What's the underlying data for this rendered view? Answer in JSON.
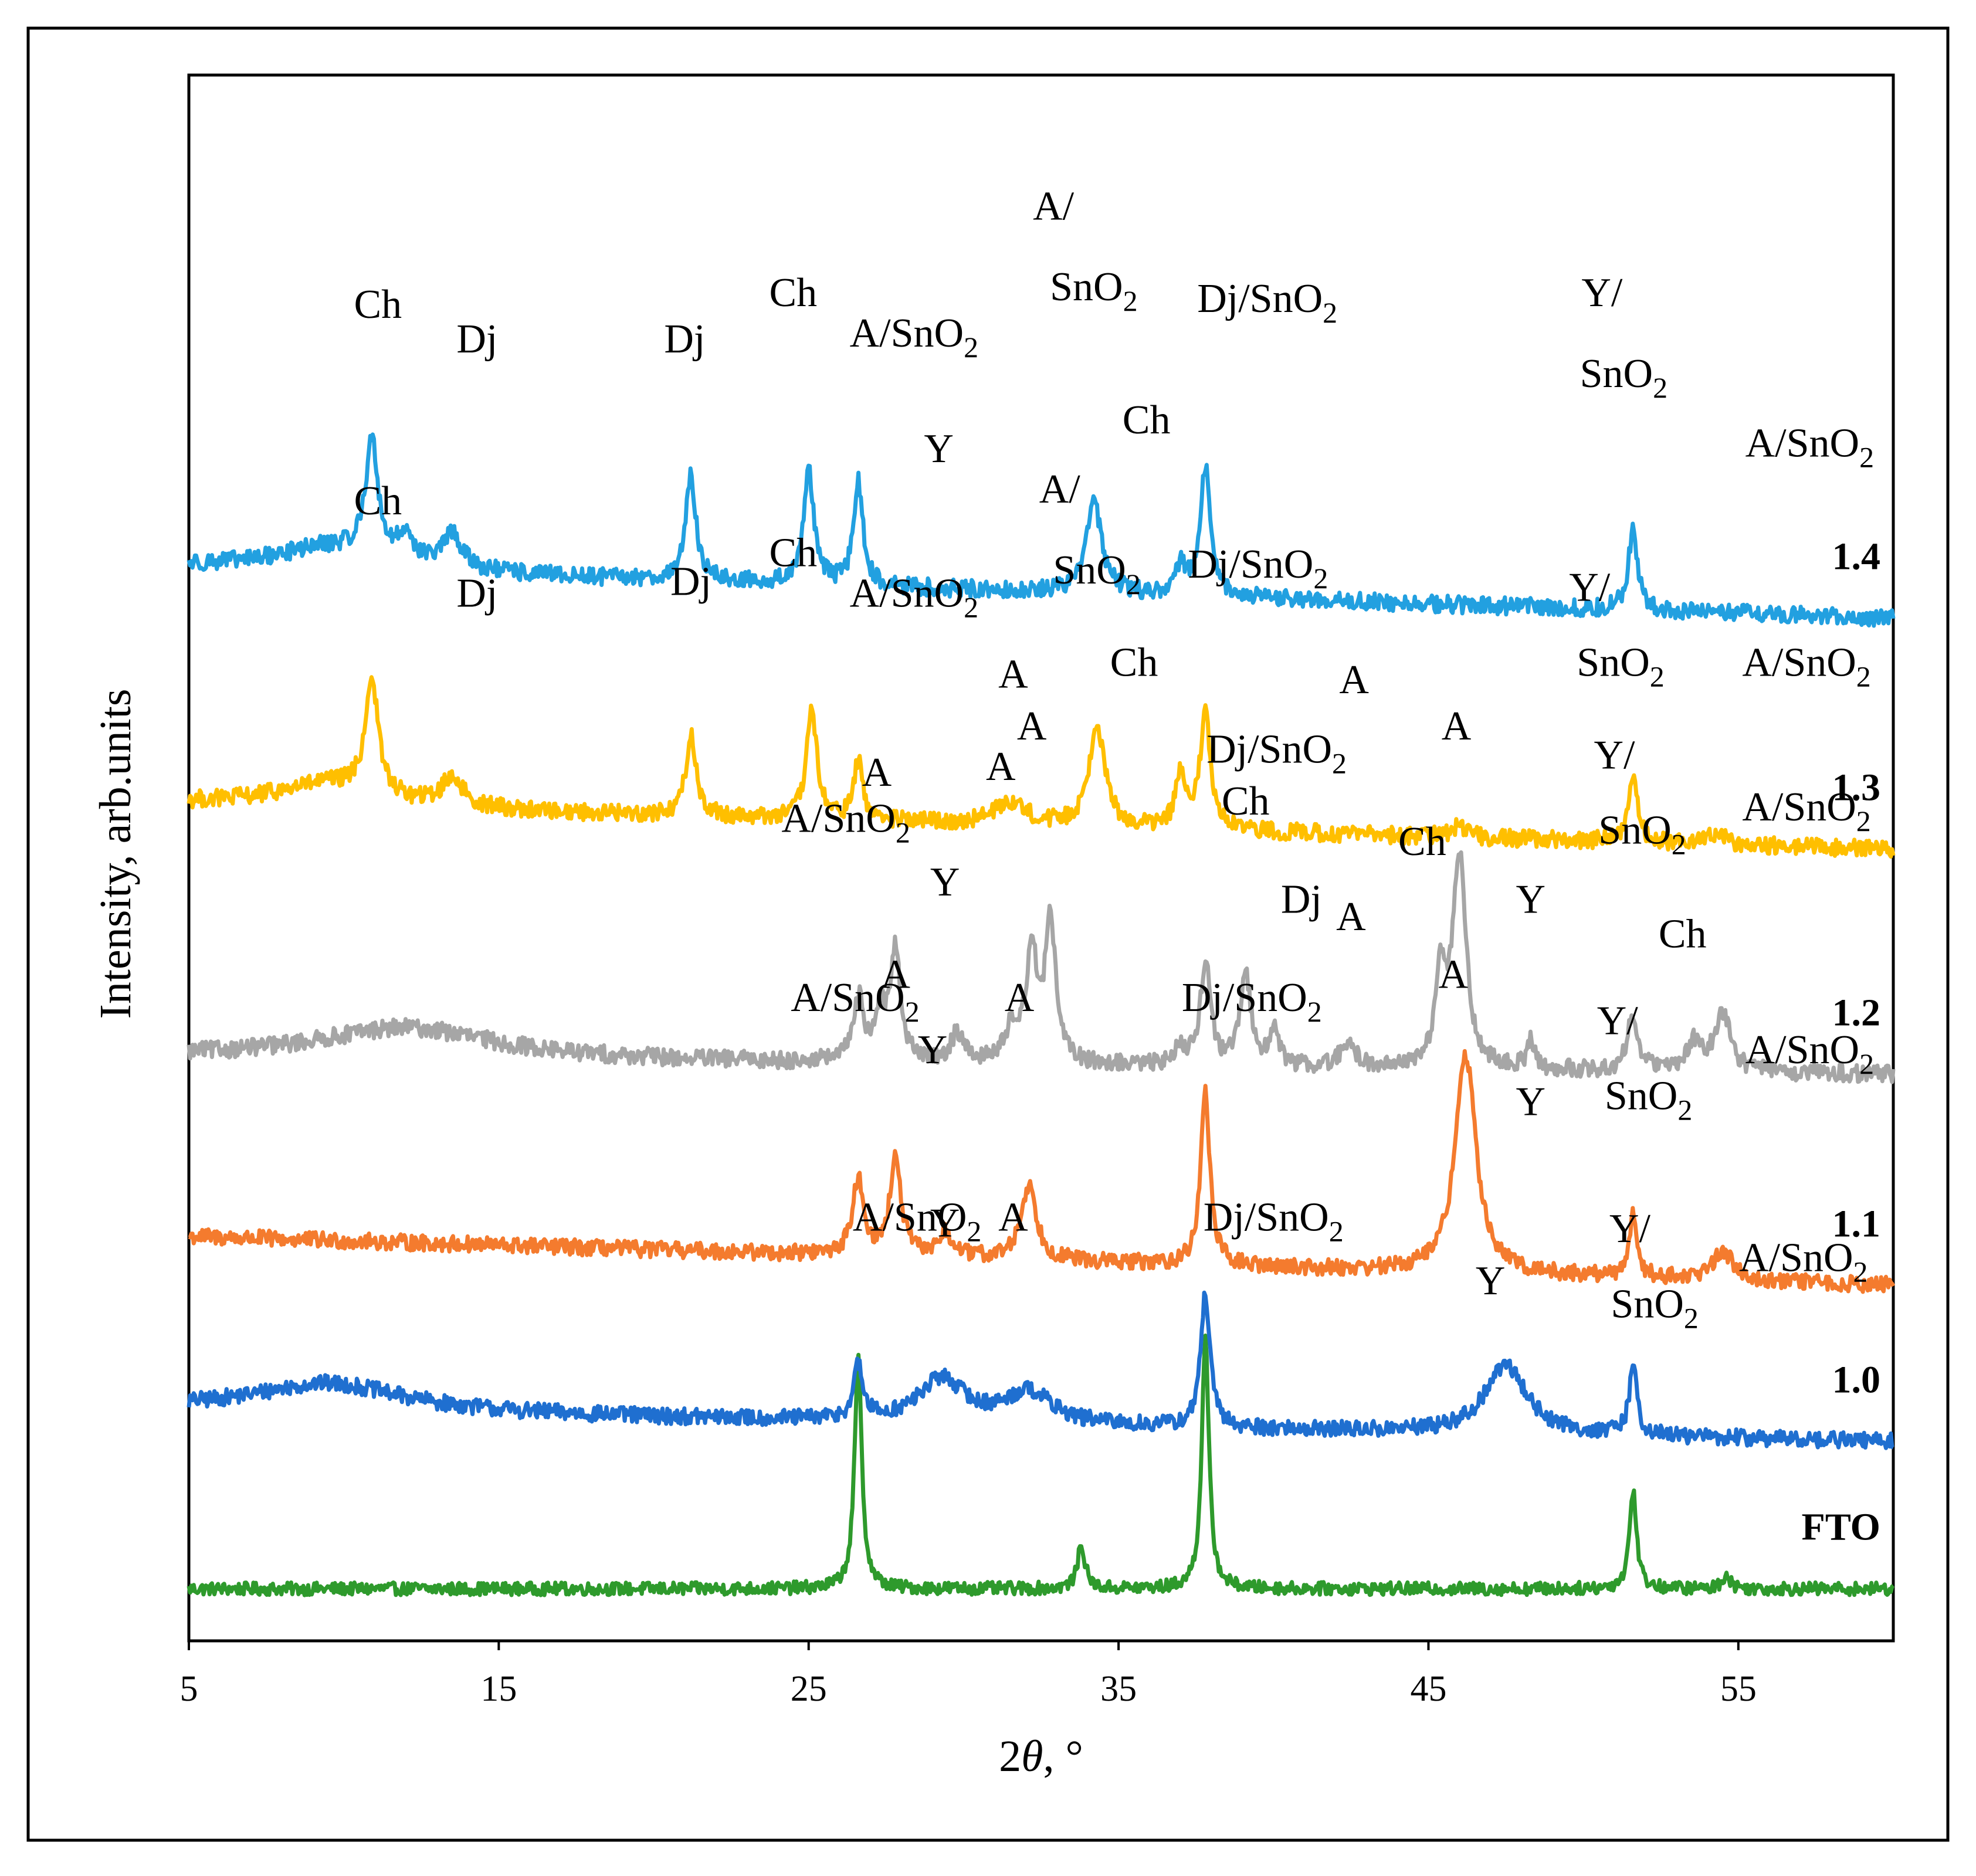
{
  "chart_data": {
    "type": "line",
    "title": "",
    "xlabel_prefix": "2",
    "xlabel_var": "θ",
    "xlabel_suffix": ", °",
    "ylabel": "Intensity, arb.units",
    "xlim": [
      5,
      60
    ],
    "xticks": [
      5,
      15,
      25,
      35,
      45,
      55
    ],
    "yticks_shown": false,
    "grid": false,
    "legend": "none; series labelled at right end of each trace",
    "series": [
      {
        "name": "FTO",
        "color": "#2e9a2c",
        "baseline": 0.3,
        "slope": 0.0,
        "noise": 0.11,
        "peaks": [
          {
            "x": 26.6,
            "h": 4.0,
            "w": 0.14
          },
          {
            "x": 33.8,
            "h": 0.75,
            "w": 0.15
          },
          {
            "x": 37.8,
            "h": 4.3,
            "w": 0.14
          },
          {
            "x": 51.6,
            "h": 1.7,
            "w": 0.14
          },
          {
            "x": 54.6,
            "h": 0.25,
            "w": 0.15
          }
        ],
        "annotations": []
      },
      {
        "name": "1.0",
        "color": "#1f6fd0",
        "baseline": 3.4,
        "slope": -0.55,
        "noise": 0.14,
        "peaks": [
          {
            "x": 9.5,
            "h": 0.5,
            "w": 3.0
          },
          {
            "x": 26.6,
            "h": 0.9,
            "w": 0.18
          },
          {
            "x": 29.3,
            "h": 0.75,
            "w": 0.9
          },
          {
            "x": 32.1,
            "h": 0.55,
            "w": 0.9
          },
          {
            "x": 37.8,
            "h": 2.3,
            "w": 0.18
          },
          {
            "x": 47.5,
            "h": 1.2,
            "w": 0.8
          },
          {
            "x": 51.6,
            "h": 1.2,
            "w": 0.15
          }
        ],
        "annotations": [
          {
            "text": "A/SnO",
            "sub": "2",
            "x": 28.5,
            "y": 6.5
          },
          {
            "text": "Y",
            "x": 29.4,
            "y": 6.4
          },
          {
            "text": "A",
            "x": 31.6,
            "y": 6.5
          },
          {
            "text": "Dj/SnO",
            "sub": "2",
            "x": 40.0,
            "y": 6.5
          },
          {
            "text": "Y",
            "x": 47.0,
            "y": 5.4
          },
          {
            "text": "Y/",
            "x": 51.5,
            "y": 6.3
          },
          {
            "text": "SnO",
            "sub": "2",
            "x": 52.3,
            "y": 5.0
          },
          {
            "text": "A/SnO",
            "sub": "2",
            "x": 57.1,
            "y": 5.8
          }
        ]
      },
      {
        "name": "1.1",
        "color": "#f47b2e",
        "baseline": 6.4,
        "slope": -0.85,
        "noise": 0.14,
        "peaks": [
          {
            "x": 26.6,
            "h": 1.3,
            "w": 0.22
          },
          {
            "x": 27.8,
            "h": 1.65,
            "w": 0.22
          },
          {
            "x": 29.4,
            "h": 0.4,
            "w": 0.3
          },
          {
            "x": 32.1,
            "h": 1.3,
            "w": 0.3
          },
          {
            "x": 37.8,
            "h": 3.0,
            "w": 0.18
          },
          {
            "x": 46.2,
            "h": 3.8,
            "w": 0.4
          },
          {
            "x": 51.6,
            "h": 1.1,
            "w": 0.15
          },
          {
            "x": 54.5,
            "h": 0.5,
            "w": 0.4
          }
        ],
        "annotations": [
          {
            "text": "A/SnO",
            "sub": "2",
            "x": 26.5,
            "y": 10.3
          },
          {
            "text": "A",
            "x": 27.8,
            "y": 10.7
          },
          {
            "text": "Y",
            "x": 29.0,
            "y": 9.4
          },
          {
            "text": "A",
            "x": 31.8,
            "y": 10.3
          },
          {
            "text": "Dj/SnO",
            "sub": "2",
            "x": 39.3,
            "y": 10.3
          },
          {
            "text": "A",
            "x": 45.8,
            "y": 10.7
          },
          {
            "text": "Y",
            "x": 48.3,
            "y": 8.5
          },
          {
            "text": "Y/",
            "x": 51.1,
            "y": 9.9
          },
          {
            "text": "SnO",
            "sub": "2",
            "x": 52.1,
            "y": 8.6
          },
          {
            "text": "A/SnO",
            "sub": "2",
            "x": 57.3,
            "y": 9.4
          }
        ]
      },
      {
        "name": "1.2",
        "color": "#a6a6a6",
        "baseline": 9.5,
        "slope": -0.3,
        "noise": 0.15,
        "peaks": [
          {
            "x": 12.0,
            "h": 0.55,
            "w": 3.5
          },
          {
            "x": 26.6,
            "h": 1.1,
            "w": 0.2
          },
          {
            "x": 27.3,
            "h": 0.8,
            "w": 0.2
          },
          {
            "x": 27.8,
            "h": 1.9,
            "w": 0.2
          },
          {
            "x": 29.8,
            "h": 0.5,
            "w": 0.25
          },
          {
            "x": 31.6,
            "h": 0.6,
            "w": 0.3
          },
          {
            "x": 32.2,
            "h": 1.9,
            "w": 0.2
          },
          {
            "x": 32.8,
            "h": 2.5,
            "w": 0.2
          },
          {
            "x": 37.0,
            "h": 0.3,
            "w": 0.2
          },
          {
            "x": 37.8,
            "h": 1.8,
            "w": 0.2
          },
          {
            "x": 39.1,
            "h": 1.6,
            "w": 0.2
          },
          {
            "x": 40.0,
            "h": 0.6,
            "w": 0.2
          },
          {
            "x": 42.4,
            "h": 0.4,
            "w": 0.3
          },
          {
            "x": 45.4,
            "h": 1.6,
            "w": 0.2
          },
          {
            "x": 46.0,
            "h": 3.7,
            "w": 0.25
          },
          {
            "x": 48.3,
            "h": 0.5,
            "w": 0.15
          },
          {
            "x": 51.6,
            "h": 1.0,
            "w": 0.2
          },
          {
            "x": 53.6,
            "h": 0.5,
            "w": 0.3
          },
          {
            "x": 54.5,
            "h": 1.0,
            "w": 0.3
          }
        ],
        "annotations": [
          {
            "text": "A/SnO",
            "sub": "2",
            "x": 26.2,
            "y": 13.4
          },
          {
            "text": "A",
            "x": 27.2,
            "y": 14.2
          },
          {
            "text": "Y",
            "x": 29.4,
            "y": 12.3
          },
          {
            "text": "A",
            "x": 31.2,
            "y": 14.3
          },
          {
            "text": "A",
            "x": 32.2,
            "y": 15.0
          },
          {
            "text": "Dj/SnO",
            "sub": "2",
            "x": 40.1,
            "y": 14.6
          },
          {
            "text": "Ch",
            "x": 39.1,
            "y": 13.7
          },
          {
            "text": "Dj",
            "x": 40.9,
            "y": 12.0
          },
          {
            "text": "A",
            "x": 42.5,
            "y": 11.7
          },
          {
            "text": "Ch",
            "x": 44.8,
            "y": 13.0
          },
          {
            "text": "A",
            "x": 45.9,
            "y": 15.0
          },
          {
            "text": "Y",
            "x": 48.3,
            "y": 12.0
          },
          {
            "text": "Y/",
            "x": 51.0,
            "y": 14.5
          },
          {
            "text": "SnO",
            "sub": "2",
            "x": 51.9,
            "y": 13.2
          },
          {
            "text": "A/SnO",
            "sub": "2",
            "x": 57.2,
            "y": 13.6
          },
          {
            "text": "Ch",
            "x": 53.2,
            "y": 11.4
          }
        ]
      },
      {
        "name": "1.3",
        "color": "#ffbf00",
        "baseline": 13.9,
        "slope": -0.8,
        "noise": 0.15,
        "peaks": [
          {
            "x": 9.5,
            "h": 0.4,
            "w": 2.0
          },
          {
            "x": 10.9,
            "h": 2.0,
            "w": 0.25
          },
          {
            "x": 13.5,
            "h": 0.5,
            "w": 0.4
          },
          {
            "x": 21.2,
            "h": 1.4,
            "w": 0.2
          },
          {
            "x": 25.1,
            "h": 1.9,
            "w": 0.2
          },
          {
            "x": 26.6,
            "h": 1.0,
            "w": 0.18
          },
          {
            "x": 31.5,
            "h": 0.4,
            "w": 0.6
          },
          {
            "x": 34.3,
            "h": 1.8,
            "w": 0.3
          },
          {
            "x": 37.0,
            "h": 0.9,
            "w": 0.2
          },
          {
            "x": 37.8,
            "h": 2.0,
            "w": 0.2
          },
          {
            "x": 46.0,
            "h": 0.2,
            "w": 0.3
          },
          {
            "x": 51.6,
            "h": 1.1,
            "w": 0.18
          },
          {
            "x": 54.3,
            "h": 0.2,
            "w": 0.3
          }
        ],
        "annotations": [
          {
            "text": "Ch",
            "x": 11.1,
            "y": 18.9
          },
          {
            "text": "Dj",
            "x": 14.3,
            "y": 17.3
          },
          {
            "text": "Dj",
            "x": 21.2,
            "y": 17.5
          },
          {
            "text": "Ch",
            "x": 24.5,
            "y": 18.0
          },
          {
            "text": "A/SnO",
            "sub": "2",
            "x": 28.4,
            "y": 17.3
          },
          {
            "text": "A",
            "x": 31.6,
            "y": 15.9
          },
          {
            "text": "A/",
            "x": 33.1,
            "y": 19.1
          },
          {
            "text": "SnO",
            "sub": "2",
            "x": 34.3,
            "y": 17.7
          },
          {
            "text": "Ch",
            "x": 35.5,
            "y": 16.1
          },
          {
            "text": "Dj/SnO",
            "sub": "2",
            "x": 39.5,
            "y": 17.8
          },
          {
            "text": "A",
            "x": 42.6,
            "y": 15.8
          },
          {
            "text": "Y/",
            "x": 50.2,
            "y": 17.4
          },
          {
            "text": "SnO",
            "sub": "2",
            "x": 51.2,
            "y": 16.1
          },
          {
            "text": "A/SnO",
            "sub": "2",
            "x": 57.2,
            "y": 16.1
          }
        ]
      },
      {
        "name": "1.4",
        "color": "#22a0e0",
        "baseline": 18.0,
        "slope": -0.9,
        "noise": 0.15,
        "peaks": [
          {
            "x": 9.5,
            "h": 0.4,
            "w": 2.0
          },
          {
            "x": 10.9,
            "h": 2.0,
            "w": 0.25
          },
          {
            "x": 12.0,
            "h": 0.5,
            "w": 0.3
          },
          {
            "x": 13.5,
            "h": 0.6,
            "w": 0.4
          },
          {
            "x": 21.2,
            "h": 1.8,
            "w": 0.2
          },
          {
            "x": 25.0,
            "h": 2.0,
            "w": 0.2
          },
          {
            "x": 26.6,
            "h": 1.8,
            "w": 0.18
          },
          {
            "x": 34.2,
            "h": 1.6,
            "w": 0.3
          },
          {
            "x": 37.0,
            "h": 0.5,
            "w": 0.2
          },
          {
            "x": 37.8,
            "h": 2.2,
            "w": 0.2
          },
          {
            "x": 51.6,
            "h": 1.4,
            "w": 0.18
          }
        ],
        "annotations": [
          {
            "text": "Ch",
            "x": 11.1,
            "y": 22.3
          },
          {
            "text": "Dj",
            "x": 14.3,
            "y": 21.7
          },
          {
            "text": "Dj",
            "x": 21.0,
            "y": 21.7
          },
          {
            "text": "Ch",
            "x": 24.5,
            "y": 22.5
          },
          {
            "text": "A/SnO",
            "sub": "2",
            "x": 28.4,
            "y": 21.8
          },
          {
            "text": "Y",
            "x": 29.2,
            "y": 19.8
          },
          {
            "text": "A/",
            "x": 32.9,
            "y": 24.0
          },
          {
            "text": "SnO",
            "sub": "2",
            "x": 34.2,
            "y": 22.6
          },
          {
            "text": "Ch",
            "x": 35.9,
            "y": 20.3
          },
          {
            "text": "Dj/SnO",
            "sub": "2",
            "x": 39.8,
            "y": 22.4
          },
          {
            "text": "Y/",
            "x": 50.6,
            "y": 22.5
          },
          {
            "text": "SnO",
            "sub": "2",
            "x": 51.3,
            "y": 21.1
          },
          {
            "text": "A/SnO",
            "sub": "2",
            "x": 57.3,
            "y": 19.9
          }
        ]
      }
    ],
    "ylim": [
      -0.6,
      26.5
    ]
  }
}
